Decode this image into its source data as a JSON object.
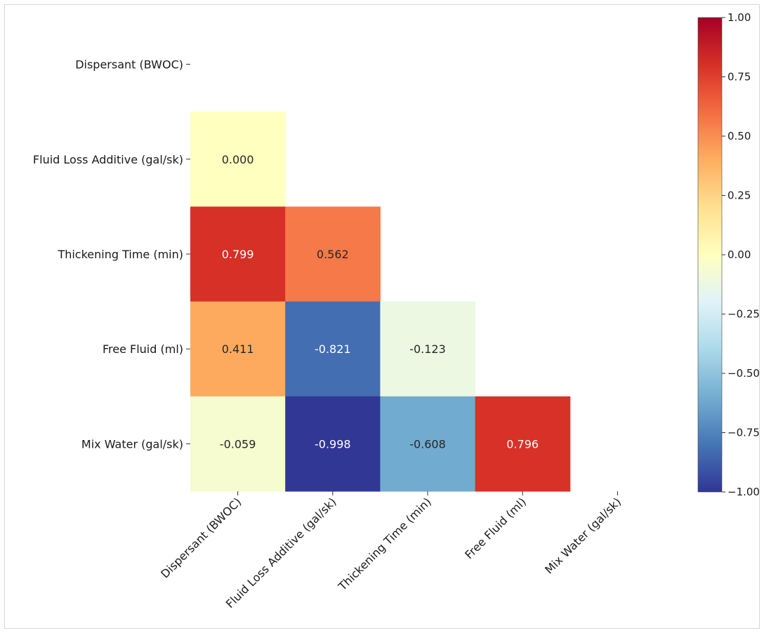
{
  "chart_data": {
    "type": "heatmap",
    "title": "",
    "labels": [
      "Dispersant (BWOC)",
      "Fluid Loss Additive (gal/sk)",
      "Thickening Time (min)",
      "Free Fluid (ml)",
      "Mix Water (gal/sk)"
    ],
    "matrix": [
      [
        null,
        null,
        null,
        null,
        null
      ],
      [
        0.0,
        null,
        null,
        null,
        null
      ],
      [
        0.799,
        0.562,
        null,
        null,
        null
      ],
      [
        0.411,
        -0.821,
        -0.123,
        null,
        null
      ],
      [
        -0.059,
        -0.998,
        -0.608,
        0.796,
        null
      ]
    ],
    "cell_labels": [
      [
        null,
        null,
        null,
        null,
        null
      ],
      [
        "0.000",
        null,
        null,
        null,
        null
      ],
      [
        "0.799",
        "0.562",
        null,
        null,
        null
      ],
      [
        "0.411",
        "-0.821",
        "-0.123",
        null,
        null
      ],
      [
        "-0.059",
        "-0.998",
        "-0.608",
        "0.796",
        null
      ]
    ],
    "mask": "upper-triangle-including-diagonal",
    "colormap": "RdYlBu_r",
    "vmin": -1.0,
    "vmax": 1.0,
    "colorbar": {
      "position": "right",
      "ticks": [
        1.0,
        0.75,
        0.5,
        0.25,
        0.0,
        -0.25,
        -0.5,
        -0.75,
        -1.0
      ],
      "tick_labels": [
        "1.00",
        "0.75",
        "0.50",
        "0.25",
        "0.00",
        "−0.25",
        "−0.50",
        "−0.75",
        "−1.00"
      ]
    }
  }
}
